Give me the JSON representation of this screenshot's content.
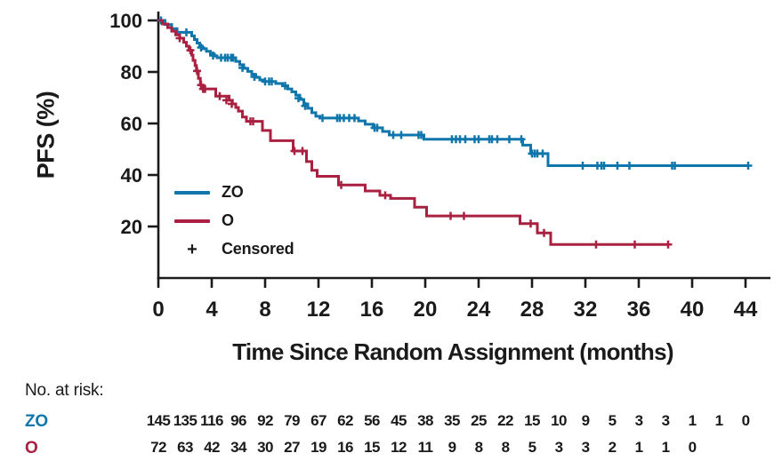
{
  "chart_data": {
    "type": "line",
    "subtype": "kaplan-meier-step",
    "title": "",
    "xlabel": "Time Since Random Assignment (months)",
    "ylabel": "PFS (%)",
    "xlim": [
      0,
      46
    ],
    "ylim": [
      0,
      100
    ],
    "x_ticks": [
      0,
      4,
      8,
      12,
      16,
      20,
      24,
      28,
      32,
      36,
      40,
      44
    ],
    "y_ticks": [
      100,
      80,
      60,
      40,
      20
    ],
    "grid": false,
    "legend_position": "inside-lower-left",
    "censored_marker": "+",
    "censored_label": "Censored",
    "axis_color": "#1a1a1a",
    "series": [
      {
        "name": "ZO",
        "color": "#0F76AC",
        "end_month": 44.2,
        "points": [
          [
            0,
            100
          ],
          [
            0.5,
            98.4
          ],
          [
            1.0,
            96.8
          ],
          [
            1.4,
            95.4
          ],
          [
            2.5,
            94.0
          ],
          [
            2.7,
            92.6
          ],
          [
            2.9,
            91.2
          ],
          [
            3.1,
            90.0
          ],
          [
            3.3,
            89.0
          ],
          [
            3.6,
            88.0
          ],
          [
            3.9,
            87.0
          ],
          [
            4.2,
            86.2
          ],
          [
            4.4,
            85.5
          ],
          [
            5.8,
            84.1
          ],
          [
            6.1,
            82.8
          ],
          [
            6.4,
            81.4
          ],
          [
            6.7,
            80.2
          ],
          [
            7.0,
            79.0
          ],
          [
            7.3,
            77.9
          ],
          [
            7.6,
            76.9
          ],
          [
            7.9,
            76.3
          ],
          [
            8.8,
            75.5
          ],
          [
            9.3,
            74.6
          ],
          [
            9.7,
            73.4
          ],
          [
            10.0,
            72.3
          ],
          [
            10.3,
            71.0
          ],
          [
            10.6,
            69.3
          ],
          [
            10.9,
            67.6
          ],
          [
            11.2,
            65.9
          ],
          [
            11.5,
            64.2
          ],
          [
            11.8,
            62.8
          ],
          [
            12.1,
            62.1
          ],
          [
            15.0,
            61.0
          ],
          [
            15.5,
            59.7
          ],
          [
            16.1,
            58.3
          ],
          [
            16.8,
            56.9
          ],
          [
            17.3,
            55.5
          ],
          [
            19.9,
            53.9
          ],
          [
            27.3,
            51.6
          ],
          [
            27.9,
            48.3
          ],
          [
            29.2,
            43.6
          ]
        ],
        "censors": [
          [
            0.2,
            100
          ],
          [
            2.1,
            95.4
          ],
          [
            3.2,
            89.5
          ],
          [
            4.1,
            86.4
          ],
          [
            4.7,
            85.5
          ],
          [
            5.0,
            85.5
          ],
          [
            5.2,
            85.5
          ],
          [
            5.45,
            85.5
          ],
          [
            5.6,
            85.5
          ],
          [
            6.3,
            81.6
          ],
          [
            7.2,
            78.1
          ],
          [
            8.0,
            76.3
          ],
          [
            8.3,
            76.3
          ],
          [
            8.5,
            76.3
          ],
          [
            9.5,
            74.6
          ],
          [
            10.5,
            69.8
          ],
          [
            11.0,
            66.8
          ],
          [
            12.3,
            62.1
          ],
          [
            13.4,
            62.1
          ],
          [
            13.6,
            62.1
          ],
          [
            13.9,
            62.1
          ],
          [
            14.3,
            62.1
          ],
          [
            14.7,
            62.1
          ],
          [
            16.2,
            58.3
          ],
          [
            16.4,
            58.3
          ],
          [
            17.6,
            55.5
          ],
          [
            18.2,
            55.5
          ],
          [
            19.5,
            55.5
          ],
          [
            19.7,
            55.5
          ],
          [
            22.0,
            53.9
          ],
          [
            22.3,
            53.9
          ],
          [
            22.6,
            53.9
          ],
          [
            23.0,
            53.9
          ],
          [
            23.7,
            53.9
          ],
          [
            24.0,
            53.9
          ],
          [
            24.8,
            53.9
          ],
          [
            25.0,
            53.9
          ],
          [
            25.4,
            53.9
          ],
          [
            26.3,
            53.9
          ],
          [
            27.2,
            53.9
          ],
          [
            28.0,
            48.3
          ],
          [
            28.2,
            48.3
          ],
          [
            28.4,
            48.3
          ],
          [
            28.8,
            48.3
          ],
          [
            31.8,
            43.6
          ],
          [
            32.9,
            43.6
          ],
          [
            33.2,
            43.6
          ],
          [
            33.4,
            43.6
          ],
          [
            34.4,
            43.6
          ],
          [
            35.3,
            43.6
          ],
          [
            38.5,
            43.6
          ],
          [
            38.7,
            43.6
          ],
          [
            44.2,
            43.6
          ]
        ]
      },
      {
        "name": "O",
        "color": "#A92040",
        "end_month": 38.2,
        "points": [
          [
            0,
            100
          ],
          [
            0.3,
            98.6
          ],
          [
            0.7,
            97.2
          ],
          [
            1.0,
            95.8
          ],
          [
            1.3,
            94.4
          ],
          [
            1.6,
            93.1
          ],
          [
            1.9,
            91.5
          ],
          [
            2.1,
            90.0
          ],
          [
            2.3,
            88.4
          ],
          [
            2.5,
            86.5
          ],
          [
            2.6,
            84.5
          ],
          [
            2.75,
            82.5
          ],
          [
            2.85,
            80.4
          ],
          [
            3.0,
            77.5
          ],
          [
            3.15,
            74.9
          ],
          [
            3.3,
            73.4
          ],
          [
            4.3,
            70.6
          ],
          [
            5.3,
            69.0
          ],
          [
            5.55,
            67.6
          ],
          [
            5.8,
            66.2
          ],
          [
            6.0,
            64.8
          ],
          [
            6.3,
            62.5
          ],
          [
            6.6,
            60.8
          ],
          [
            7.8,
            57.3
          ],
          [
            8.4,
            53.3
          ],
          [
            10.1,
            49.3
          ],
          [
            11.1,
            45.2
          ],
          [
            11.5,
            41.8
          ],
          [
            11.9,
            39.5
          ],
          [
            13.5,
            36.1
          ],
          [
            15.5,
            33.8
          ],
          [
            16.6,
            32.1
          ],
          [
            17.4,
            30.9
          ],
          [
            19.2,
            27.5
          ],
          [
            20.1,
            24.1
          ],
          [
            27.1,
            21.1
          ],
          [
            28.4,
            17.5
          ],
          [
            29.4,
            13.0
          ]
        ],
        "censors": [
          [
            1.6,
            93.1
          ],
          [
            2.4,
            88.4
          ],
          [
            2.9,
            80.4
          ],
          [
            3.2,
            74.9
          ],
          [
            3.35,
            73.4
          ],
          [
            3.5,
            73.4
          ],
          [
            4.6,
            70.6
          ],
          [
            5.1,
            69.0
          ],
          [
            5.5,
            67.6
          ],
          [
            6.9,
            60.8
          ],
          [
            7.1,
            60.8
          ],
          [
            10.2,
            49.3
          ],
          [
            10.8,
            49.3
          ],
          [
            13.7,
            36.1
          ],
          [
            17.0,
            32.1
          ],
          [
            21.9,
            24.1
          ],
          [
            22.9,
            24.1
          ],
          [
            27.9,
            21.1
          ],
          [
            28.9,
            17.5
          ],
          [
            32.8,
            13.0
          ],
          [
            35.7,
            13.0
          ],
          [
            38.2,
            13.0
          ]
        ]
      }
    ]
  },
  "risk_table": {
    "heading": "No. at risk:",
    "interval_months": 2,
    "rows": [
      {
        "label": "ZO",
        "color": "#0F76AC",
        "counts": [
          145,
          135,
          116,
          96,
          92,
          79,
          67,
          62,
          56,
          45,
          38,
          35,
          25,
          22,
          15,
          10,
          9,
          5,
          3,
          3,
          1,
          1,
          0
        ]
      },
      {
        "label": "O",
        "color": "#A92040",
        "counts": [
          72,
          63,
          42,
          34,
          30,
          27,
          19,
          16,
          15,
          12,
          11,
          9,
          8,
          8,
          5,
          3,
          3,
          2,
          1,
          1,
          0
        ]
      }
    ]
  }
}
